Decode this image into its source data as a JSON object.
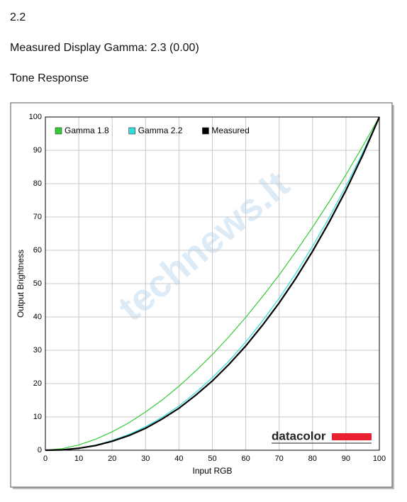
{
  "header": {
    "gamma_target": "2.2",
    "measured": "Measured Display Gamma: 2.3 (0.00)",
    "section": "Tone Response"
  },
  "chart_data": {
    "type": "line",
    "x_label": "Input RGB",
    "y_label": "Output Brightness",
    "x": [
      0,
      5,
      10,
      15,
      20,
      25,
      30,
      35,
      40,
      45,
      50,
      55,
      60,
      65,
      70,
      75,
      80,
      85,
      90,
      95,
      100
    ],
    "series": [
      {
        "name": "Gamma 1.8",
        "color": "#33cc33",
        "values": [
          0,
          0.46,
          1.58,
          3.29,
          5.54,
          8.25,
          11.5,
          15.1,
          19.2,
          23.8,
          28.7,
          34.1,
          39.9,
          46.1,
          52.6,
          59.6,
          66.9,
          74.6,
          82.7,
          91.2,
          100
        ]
      },
      {
        "name": "Gamma 2.2",
        "color": "#33dddd",
        "values": [
          0,
          0.14,
          0.63,
          1.54,
          2.9,
          4.74,
          7.07,
          9.93,
          13.3,
          17.3,
          21.8,
          26.8,
          32.5,
          38.8,
          45.6,
          53.1,
          61.2,
          69.9,
          79.3,
          89.3,
          100
        ]
      },
      {
        "name": "Measured",
        "color": "#000000",
        "values": [
          0,
          0.1,
          0.6,
          1.4,
          2.7,
          4.4,
          6.6,
          9.4,
          12.6,
          16.5,
          20.8,
          25.8,
          31.3,
          37.5,
          44.2,
          51.6,
          59.7,
          68.5,
          78.0,
          88.5,
          100
        ]
      }
    ],
    "xlim": [
      0,
      100
    ],
    "xticks": [
      0,
      10,
      20,
      30,
      40,
      50,
      60,
      70,
      80,
      90,
      100
    ],
    "ylim": [
      0,
      100
    ],
    "yticks": [
      0,
      10,
      20,
      30,
      40,
      50,
      60,
      70,
      80,
      90,
      100
    ],
    "grid": true,
    "legend": "upper left",
    "logo": "datacolor",
    "watermark": "technews.lt"
  }
}
